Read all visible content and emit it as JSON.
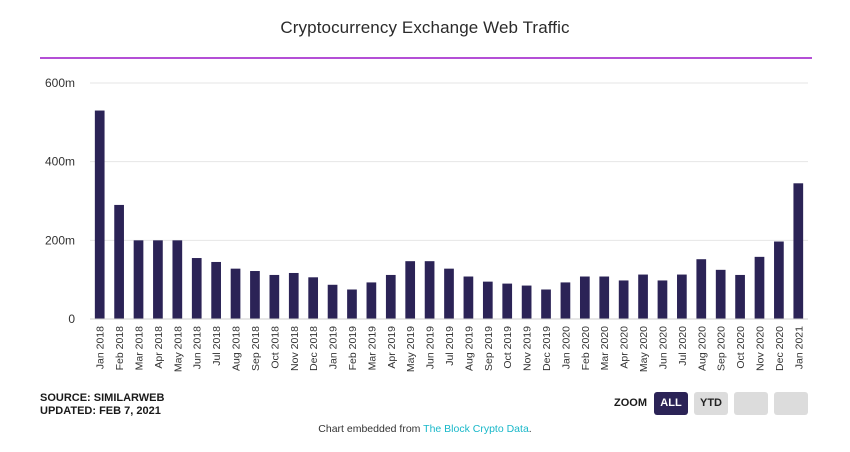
{
  "chart_data": {
    "type": "bar",
    "title": "Cryptocurrency Exchange Web Traffic",
    "xlabel": "",
    "ylabel": "",
    "ylim": [
      0,
      600
    ],
    "yticks": [
      0,
      200,
      400,
      600
    ],
    "ytick_labels": [
      "0",
      "200m",
      "400m",
      "600m"
    ],
    "grid": true,
    "bar_color": "#2b2356",
    "categories": [
      "Jan 2018",
      "Feb 2018",
      "Mar 2018",
      "Apr 2018",
      "May 2018",
      "Jun 2018",
      "Jul 2018",
      "Aug 2018",
      "Sep 2018",
      "Oct 2018",
      "Nov 2018",
      "Dec 2018",
      "Jan 2019",
      "Feb 2019",
      "Mar 2019",
      "Apr 2019",
      "May 2019",
      "Jun 2019",
      "Jul 2019",
      "Aug 2019",
      "Sep 2019",
      "Oct 2019",
      "Nov 2019",
      "Dec 2019",
      "Jan 2020",
      "Feb 2020",
      "Mar 2020",
      "Apr 2020",
      "May 2020",
      "Jun 2020",
      "Jul 2020",
      "Aug 2020",
      "Sep 2020",
      "Oct 2020",
      "Nov 2020",
      "Dec 2020",
      "Jan 2021"
    ],
    "values": [
      530,
      290,
      200,
      200,
      200,
      155,
      145,
      128,
      122,
      112,
      117,
      106,
      87,
      75,
      93,
      112,
      147,
      147,
      128,
      108,
      95,
      90,
      85,
      75,
      93,
      108,
      108,
      98,
      113,
      98,
      113,
      152,
      125,
      112,
      158,
      197,
      345
    ]
  },
  "source": {
    "line1": "SOURCE: SIMILARWEB",
    "line2": "UPDATED: FEB 7, 2021"
  },
  "zoom": {
    "label": "ZOOM",
    "all": "ALL",
    "ytd": "YTD"
  },
  "embed": {
    "prefix": "Chart embedded from ",
    "link": "The Block Crypto Data",
    "suffix": "."
  },
  "colors": {
    "accent_rule": "#b44fd6",
    "link": "#19b8c9"
  }
}
